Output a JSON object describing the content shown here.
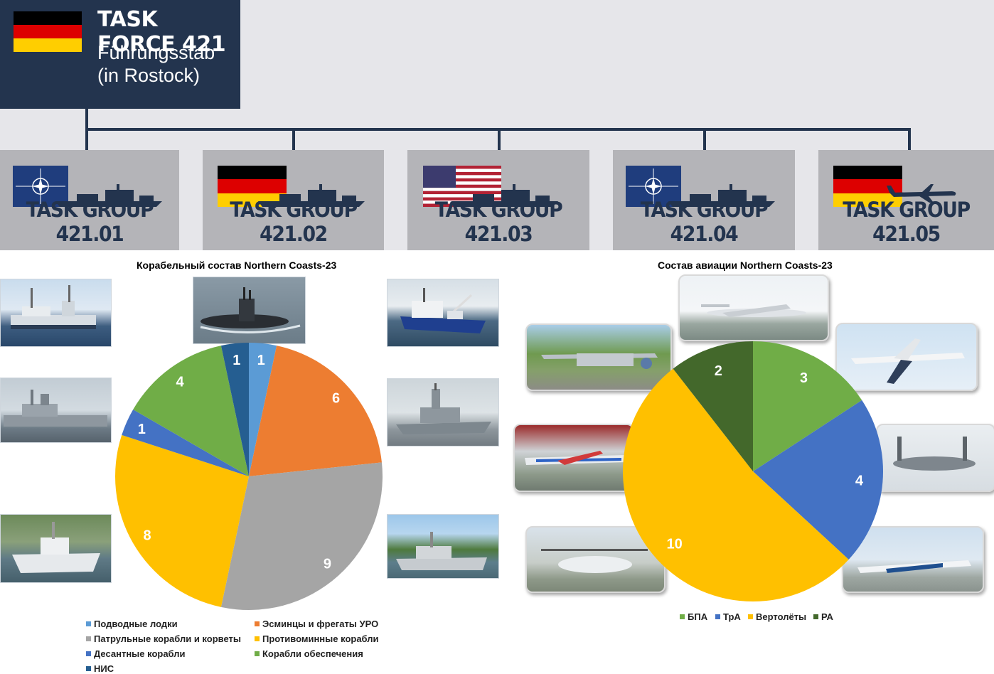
{
  "org": {
    "hq": {
      "title": "TASK FORCE 421",
      "subtitle_line1": "Führungsstab",
      "subtitle_line2": "(in Rostock)"
    },
    "groups": [
      {
        "name": "TASK GROUP 421.01",
        "flag": "nato",
        "vessel": "ship-icon"
      },
      {
        "name": "TASK GROUP 421.02",
        "flag": "germany",
        "vessel": "ship-icon"
      },
      {
        "name": "TASK GROUP 421.03",
        "flag": "usa",
        "vessel": "ship-icon"
      },
      {
        "name": "TASK GROUP 421.04",
        "flag": "nato",
        "vessel": "ship-icon"
      },
      {
        "name": "TASK GROUP 421.05",
        "flag": "germany",
        "vessel": "aircraft-icon"
      }
    ],
    "colors": {
      "navy": "#23344e",
      "panel": "#b4b4b8",
      "background": "#e6e6ea"
    }
  },
  "chart_data": [
    {
      "type": "pie",
      "title": "Корабельный состав Northern Coasts-23",
      "categories": [
        "Подводные лодки",
        "Эсминцы и фрегаты УРО",
        "Патрульные корабли и корветы",
        "Противоминные корабли",
        "Десантные корабли",
        "Корабли обеспечения",
        "НИС"
      ],
      "values": [
        1,
        6,
        9,
        8,
        1,
        4,
        1
      ],
      "colors": [
        "#5b9bd5",
        "#ed7d31",
        "#a5a5a5",
        "#ffc000",
        "#4472c4",
        "#70ad47",
        "#255e91"
      ],
      "legend_position": "bottom"
    },
    {
      "type": "pie",
      "title": "Состав авиации Northern Coasts-23",
      "categories": [
        "БПА",
        "ТрА",
        "Вертолёты",
        "РА"
      ],
      "values": [
        3,
        4,
        10,
        2
      ],
      "colors": [
        "#70ad47",
        "#4472c4",
        "#ffc000",
        "#43682b"
      ],
      "legend_position": "bottom"
    }
  ]
}
